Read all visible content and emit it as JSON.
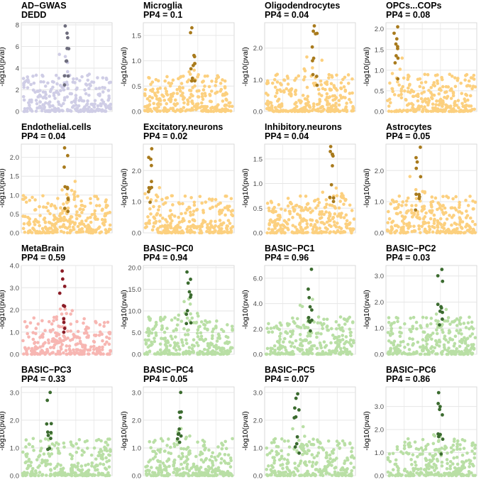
{
  "chart_data": [
    {
      "type": "scatter",
      "title": "AD−GWAS",
      "subtitle": "DEDD",
      "ylabel": "-log10(pval)",
      "ylim": [
        0,
        8.2
      ],
      "yticks": [
        0,
        2,
        4,
        6,
        8
      ],
      "tick_labels": [
        "0",
        "2",
        "4",
        "6",
        "8"
      ],
      "peak_x": 0.5,
      "peak": 7.9,
      "bg_color": "#cfcde6",
      "hi_color": "#6e6d7d",
      "seed": 1
    },
    {
      "type": "scatter",
      "title": "Microglia",
      "subtitle": "PP4 = 0.1",
      "ylabel": "-log10(pval)",
      "ylim": [
        0,
        1.75
      ],
      "yticks": [
        0,
        0.5,
        1.0,
        1.5
      ],
      "tick_labels": [
        "0.0",
        "0.5",
        "1.0",
        "1.5"
      ],
      "peak_x": 0.55,
      "peak": 1.65,
      "bg_color": "#fcd07f",
      "hi_color": "#a87a1c",
      "seed": 2
    },
    {
      "type": "scatter",
      "title": "Oligodendrocytes",
      "subtitle": "PP4 = 0.04",
      "ylabel": "-log10(pval)",
      "ylim": [
        0,
        2.8
      ],
      "yticks": [
        0,
        1,
        2
      ],
      "tick_labels": [
        "0.0",
        "1.0",
        "2.0"
      ],
      "peak_x": 0.55,
      "peak": 2.7,
      "bg_color": "#fcd07f",
      "hi_color": "#a87a1c",
      "seed": 3
    },
    {
      "type": "scatter",
      "title": "OPCs...COPs",
      "subtitle": "PP4 = 0.08",
      "ylabel": "-log10(pval)",
      "ylim": [
        0,
        2.15
      ],
      "yticks": [
        0,
        0.5,
        1.0,
        1.5,
        2.0
      ],
      "tick_labels": [
        "0.0",
        "0.5",
        "1.0",
        "1.5",
        "2.0"
      ],
      "peak_x": 0.1,
      "peak": 2.05,
      "bg_color": "#fcd07f",
      "hi_color": "#a87a1c",
      "seed": 4
    },
    {
      "type": "scatter",
      "title": "Endothelial.cells",
      "subtitle": "PP4 = 0.04",
      "ylabel": "-log10(pval)",
      "ylim": [
        0,
        2.35
      ],
      "yticks": [
        0,
        0.5,
        1.0,
        1.5,
        2.0
      ],
      "tick_labels": [
        "0.0",
        "0.5",
        "1.0",
        "1.5",
        "2.0"
      ],
      "peak_x": 0.5,
      "peak": 2.25,
      "bg_color": "#fcd07f",
      "hi_color": "#a87a1c",
      "seed": 5
    },
    {
      "type": "scatter",
      "title": "Excitatory.neurons",
      "subtitle": "PP4 = 0.02",
      "ylabel": "-log10(pval)",
      "ylim": [
        0,
        2.85
      ],
      "yticks": [
        0,
        1,
        2
      ],
      "tick_labels": [
        "0.0",
        "1.0",
        "2.0"
      ],
      "peak_x": 0.05,
      "peak": 2.7,
      "bg_color": "#fcd07f",
      "hi_color": "#a87a1c",
      "seed": 6
    },
    {
      "type": "scatter",
      "title": "Inhibitory.neurons",
      "subtitle": "PP4 = 0.04",
      "ylabel": "-log10(pval)",
      "ylim": [
        0,
        1.8
      ],
      "yticks": [
        0,
        0.5,
        1.0,
        1.5
      ],
      "tick_labels": [
        "0.0",
        "0.5",
        "1.0",
        "1.5"
      ],
      "peak_x": 0.75,
      "peak": 1.75,
      "bg_color": "#fcd07f",
      "hi_color": "#a87a1c",
      "seed": 7
    },
    {
      "type": "scatter",
      "title": "Astrocytes",
      "subtitle": "PP4 = 0.05",
      "ylabel": "-log10(pval)",
      "ylim": [
        0,
        2.85
      ],
      "yticks": [
        0,
        1,
        2
      ],
      "tick_labels": [
        "0.0",
        "1.0",
        "2.0"
      ],
      "peak_x": 0.35,
      "peak": 2.75,
      "bg_color": "#fcd07f",
      "hi_color": "#a87a1c",
      "seed": 8
    },
    {
      "type": "scatter",
      "title": "MetaBrain",
      "subtitle": "PP4 = 0.59",
      "ylabel": "-log10(pval)",
      "ylim": [
        0,
        4.0
      ],
      "yticks": [
        0,
        1,
        2,
        3,
        4
      ],
      "tick_labels": [
        "0.0",
        "1.0",
        "2.0",
        "3.0",
        "4.0"
      ],
      "peak_x": 0.45,
      "peak": 3.75,
      "bg_color": "#f7b6b2",
      "hi_color": "#8b1c26",
      "seed": 9
    },
    {
      "type": "scatter",
      "title": "BASIC−PC0",
      "subtitle": "PP4 = 0.94",
      "ylabel": "-log10(pval)",
      "ylim": [
        0,
        20.5
      ],
      "yticks": [
        0,
        5,
        10,
        15,
        20
      ],
      "tick_labels": [
        "0.0",
        "5.0",
        "10.0",
        "15.0",
        "20.0"
      ],
      "peak_x": 0.5,
      "peak": 19,
      "bg_color": "#b9dfa5",
      "hi_color": "#3b6b2f",
      "seed": 10
    },
    {
      "type": "scatter",
      "title": "BASIC−PC1",
      "subtitle": "PP4 = 0.96",
      "ylabel": "-log10(pval)",
      "ylim": [
        0,
        7.0
      ],
      "yticks": [
        0,
        2,
        4,
        6
      ],
      "tick_labels": [
        "0.0",
        "2.0",
        "4.0",
        "6.0"
      ],
      "peak_x": 0.5,
      "peak": 6.7,
      "bg_color": "#b9dfa5",
      "hi_color": "#3b6b2f",
      "seed": 11
    },
    {
      "type": "scatter",
      "title": "BASIC−PC2",
      "subtitle": "PP4 = 0.03",
      "ylabel": "-log10(pval)",
      "ylim": [
        0,
        3.4
      ],
      "yticks": [
        0,
        1,
        2,
        3
      ],
      "tick_labels": [
        "0.0",
        "1.0",
        "2.0",
        "3.0"
      ],
      "peak_x": 0.6,
      "peak": 3.25,
      "bg_color": "#b9dfa5",
      "hi_color": "#3b6b2f",
      "seed": 12
    },
    {
      "type": "scatter",
      "title": "BASIC−PC3",
      "subtitle": "PP4 = 0.33",
      "ylabel": "-log10(pval)",
      "ylim": [
        0,
        3.2
      ],
      "yticks": [
        0,
        1,
        2,
        3
      ],
      "tick_labels": [
        "0.0",
        "1.0",
        "2.0",
        "3.0"
      ],
      "peak_x": 0.3,
      "peak": 3.0,
      "bg_color": "#b9dfa5",
      "hi_color": "#3b6b2f",
      "seed": 13
    },
    {
      "type": "scatter",
      "title": "BASIC−PC4",
      "subtitle": "PP4 = 0.05",
      "ylabel": "-log10(pval)",
      "ylim": [
        0,
        3.2
      ],
      "yticks": [
        0,
        1,
        2,
        3
      ],
      "tick_labels": [
        "0.0",
        "1.0",
        "2.0",
        "3.0"
      ],
      "peak_x": 0.4,
      "peak": 3.0,
      "bg_color": "#b9dfa5",
      "hi_color": "#3b6b2f",
      "seed": 14
    },
    {
      "type": "scatter",
      "title": "BASIC−PC5",
      "subtitle": "PP4 = 0.07",
      "ylabel": "-log10(pval)",
      "ylim": [
        0,
        3.2
      ],
      "yticks": [
        0,
        1,
        2,
        3
      ],
      "tick_labels": [
        "0.0",
        "1.0",
        "2.0",
        "3.0"
      ],
      "peak_x": 0.35,
      "peak": 2.95,
      "bg_color": "#b9dfa5",
      "hi_color": "#3b6b2f",
      "seed": 15
    },
    {
      "type": "scatter",
      "title": "BASIC−PC6",
      "subtitle": "PP4 = 0.86",
      "ylabel": "-log10(pval)",
      "ylim": [
        0,
        3.85
      ],
      "yticks": [
        0,
        1,
        2,
        3
      ],
      "tick_labels": [
        "0.0",
        "1.0",
        "2.0",
        "3.0"
      ],
      "peak_x": 0.6,
      "peak": 3.6,
      "bg_color": "#b9dfa5",
      "hi_color": "#3b6b2f",
      "seed": 16
    }
  ]
}
